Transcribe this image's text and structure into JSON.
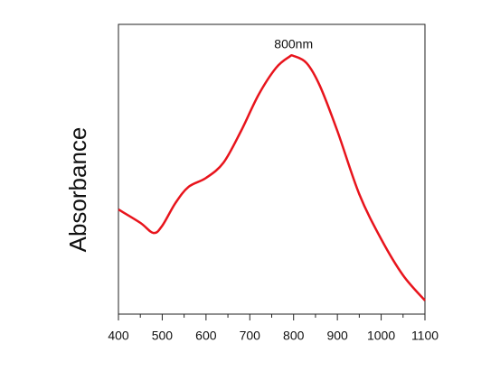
{
  "chart_data": {
    "type": "line",
    "ylabel": "Absorbance",
    "x": [
      400,
      450,
      480,
      500,
      530,
      560,
      600,
      640,
      680,
      720,
      760,
      790,
      800,
      830,
      860,
      900,
      950,
      1000,
      1050,
      1100
    ],
    "series": [
      {
        "name": "Absorbance",
        "color": "#e8141c",
        "values": [
          0.361,
          0.315,
          0.28,
          0.305,
          0.383,
          0.439,
          0.47,
          0.523,
          0.632,
          0.757,
          0.85,
          0.888,
          0.891,
          0.866,
          0.788,
          0.632,
          0.414,
          0.259,
          0.134,
          0.047
        ]
      }
    ],
    "xlim": [
      400,
      1100
    ],
    "xticks": [
      400,
      500,
      600,
      700,
      800,
      900,
      1000,
      1100
    ],
    "xminorticks": [
      450,
      550,
      650,
      750,
      850,
      950,
      1050
    ],
    "ylim": [
      0,
      1
    ],
    "annotations": [
      {
        "text": "800nm",
        "x": 800
      }
    ],
    "grid": false
  }
}
